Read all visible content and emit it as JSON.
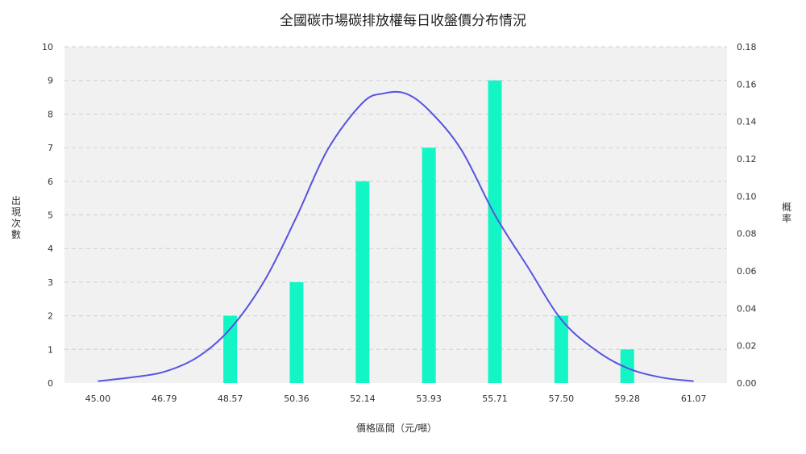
{
  "chart_data": {
    "type": "bar",
    "title": "全國碳市場碳排放權每日收盤價分布情況",
    "xlabel": "價格區間（元/噸）",
    "ylabel": "出現次數",
    "y2label": "概率",
    "categories": [
      "45.00",
      "46.79",
      "48.57",
      "50.36",
      "52.14",
      "53.93",
      "55.71",
      "57.50",
      "59.28",
      "61.07"
    ],
    "x_ticks": [
      45.0,
      46.79,
      48.57,
      50.36,
      52.14,
      53.93,
      55.71,
      57.5,
      59.28,
      61.07
    ],
    "xlim": [
      44.1,
      61.97
    ],
    "bars": [
      {
        "x": 48.57,
        "value": 2
      },
      {
        "x": 50.36,
        "value": 3
      },
      {
        "x": 52.14,
        "value": 6
      },
      {
        "x": 53.93,
        "value": 7
      },
      {
        "x": 55.71,
        "value": 9
      },
      {
        "x": 57.5,
        "value": 2
      },
      {
        "x": 59.28,
        "value": 1
      }
    ],
    "ylim": [
      0,
      10
    ],
    "y_ticks": [
      "0",
      "1",
      "2",
      "3",
      "4",
      "5",
      "6",
      "7",
      "8",
      "9",
      "10"
    ],
    "y2lim": [
      0,
      0.18
    ],
    "y2_ticks": [
      "0.00",
      "0.02",
      "0.04",
      "0.06",
      "0.08",
      "0.10",
      "0.12",
      "0.14",
      "0.16",
      "0.18"
    ],
    "curve": {
      "x": [
        45.0,
        45.9,
        46.79,
        47.7,
        48.57,
        49.5,
        50.36,
        51.2,
        52.14,
        52.7,
        53.3,
        53.93,
        54.8,
        55.71,
        56.6,
        57.5,
        58.4,
        59.28,
        60.2,
        61.07
      ],
      "y": [
        0.001,
        0.003,
        0.006,
        0.014,
        0.029,
        0.055,
        0.089,
        0.125,
        0.15,
        0.155,
        0.155,
        0.146,
        0.125,
        0.09,
        0.062,
        0.034,
        0.018,
        0.008,
        0.003,
        0.001
      ]
    },
    "grid": true,
    "colors": {
      "bar": "#14f5c6",
      "curve": "#5654e0",
      "plot_bg": "#f1f1f1",
      "grid": "#cfcfcf"
    }
  }
}
